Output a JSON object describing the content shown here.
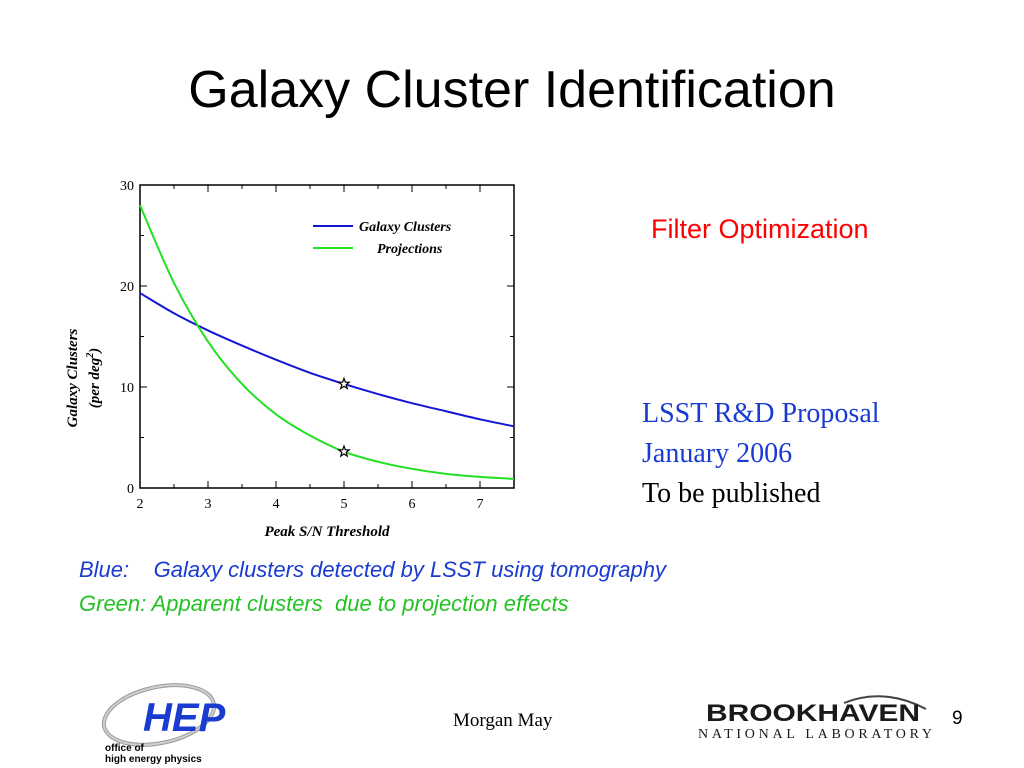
{
  "slide": {
    "title": "Galaxy Cluster Identification",
    "filter_label": "Filter Optimization",
    "publication": {
      "line1": "LSST R&D Proposal",
      "line2": "January 2006",
      "line3": "To be published"
    },
    "caption_blue": "Blue:    Galaxy clusters detected by LSST using tomography",
    "caption_green": "Green: Apparent clusters  due to projection effects",
    "author": "Morgan May",
    "page_number": "9",
    "hep_logo": {
      "mark": "HEP",
      "line1": "office of",
      "line2": "high energy physics"
    },
    "bnl_logo": {
      "name": "BROOKHAVEN",
      "sub": "NATIONAL LABORATORY"
    }
  },
  "chart_data": {
    "type": "line",
    "xlabel": "Peak S/N Threshold",
    "ylabel": "Galaxy Clusters",
    "ylabel_unit": "(per deg",
    "ylabel_sup": "2",
    "ylabel_close": ")",
    "xlim": [
      2,
      7.5
    ],
    "ylim": [
      0,
      30
    ],
    "xticks": [
      2,
      3,
      4,
      5,
      6,
      7
    ],
    "yticks": [
      0,
      10,
      20,
      30
    ],
    "legend_position": "top-right",
    "series": [
      {
        "name": "Galaxy Clusters",
        "color": "#1515d6",
        "x": [
          2,
          2.5,
          3,
          3.5,
          4,
          4.5,
          5,
          5.5,
          6,
          6.5,
          7,
          7.5
        ],
        "y": [
          19.3,
          17.3,
          15.6,
          14.1,
          12.7,
          11.4,
          10.3,
          9.3,
          8.4,
          7.6,
          6.8,
          6.1
        ]
      },
      {
        "name": "Projections",
        "color": "#22e022",
        "x": [
          2,
          2.5,
          3,
          3.5,
          4,
          4.5,
          5,
          5.5,
          6,
          6.5,
          7,
          7.5
        ],
        "y": [
          28,
          20.3,
          14.5,
          10.3,
          7.3,
          5.2,
          3.6,
          2.6,
          1.9,
          1.4,
          1.1,
          0.9
        ]
      }
    ],
    "markers": [
      {
        "series": "Galaxy Clusters",
        "x": 5,
        "y": 10.3,
        "symbol": "star"
      },
      {
        "series": "Projections",
        "x": 5,
        "y": 3.6,
        "symbol": "star"
      }
    ]
  }
}
